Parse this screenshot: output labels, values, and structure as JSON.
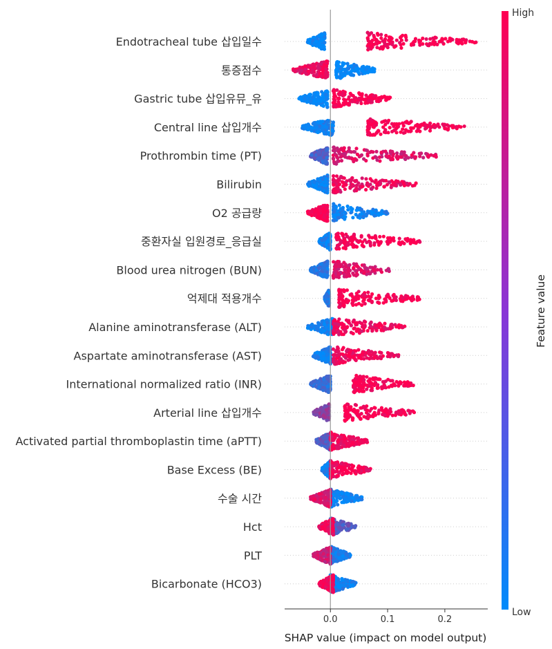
{
  "chart_data": {
    "type": "scatter",
    "subtype": "shap-beeswarm",
    "xlabel": "SHAP value (impact on model output)",
    "xlim": [
      -0.08,
      0.275
    ],
    "xticks": [
      0.0,
      0.1,
      0.2
    ],
    "xtick_labels": [
      "0.0",
      "0.1",
      "0.2"
    ],
    "colorbar": {
      "label": "Feature value",
      "high_label": "High",
      "low_label": "Low",
      "high_color": "#ff0052",
      "low_color": "#008bfb"
    },
    "features": [
      {
        "name": "Endotracheal tube 삽입일수",
        "low_range": [
          -0.04,
          -0.01
        ],
        "high_range": [
          0.065,
          0.255
        ],
        "low_color": 0.0,
        "high_color": 1.0
      },
      {
        "name": "통증점수",
        "low_range": [
          0.01,
          0.08
        ],
        "high_range": [
          -0.065,
          -0.005
        ],
        "low_color": 0.0,
        "high_color": 0.92
      },
      {
        "name": "Gastric tube 삽입유뮤_유",
        "low_range": [
          -0.055,
          -0.005
        ],
        "high_range": [
          0.005,
          0.105
        ],
        "low_color": 0.0,
        "high_color": 1.0
      },
      {
        "name": "Central line 삽입개수",
        "low_range": [
          -0.05,
          0.005
        ],
        "high_range": [
          0.065,
          0.235
        ],
        "low_color": 0.05,
        "high_color": 1.0
      },
      {
        "name": "Prothrombin time (PT)",
        "low_range": [
          -0.035,
          -0.005
        ],
        "high_range": [
          0.005,
          0.185
        ],
        "low_color": 0.3,
        "high_color": 0.85
      },
      {
        "name": "Bilirubin",
        "low_range": [
          -0.04,
          -0.005
        ],
        "high_range": [
          0.005,
          0.15
        ],
        "low_color": 0.05,
        "high_color": 0.9
      },
      {
        "name": "O2 공급량",
        "low_range": [
          0.005,
          0.1
        ],
        "high_range": [
          -0.04,
          -0.005
        ],
        "low_color": 0.05,
        "high_color": 1.0
      },
      {
        "name": "중환자실 입원경로_응급실",
        "low_range": [
          -0.02,
          0.0
        ],
        "high_range": [
          0.01,
          0.16
        ],
        "low_color": 0.05,
        "high_color": 1.0
      },
      {
        "name": "Blood urea nitrogen (BUN)",
        "low_range": [
          -0.035,
          -0.005
        ],
        "high_range": [
          0.005,
          0.105
        ],
        "low_color": 0.15,
        "high_color": 0.85
      },
      {
        "name": "억제대 적용개수",
        "low_range": [
          -0.01,
          -0.002
        ],
        "high_range": [
          0.015,
          0.158
        ],
        "low_color": 0.1,
        "high_color": 1.0
      },
      {
        "name": "Alanine aminotransferase (ALT)",
        "low_range": [
          -0.04,
          0.005
        ],
        "high_range": [
          0.005,
          0.13
        ],
        "low_color": 0.05,
        "high_color": 0.95
      },
      {
        "name": "Aspartate aminotransferase (AST)",
        "low_range": [
          -0.03,
          0.0
        ],
        "high_range": [
          0.005,
          0.12
        ],
        "low_color": 0.05,
        "high_color": 0.95
      },
      {
        "name": "International normalized ratio (INR)",
        "low_range": [
          -0.035,
          0.0
        ],
        "high_range": [
          0.04,
          0.145
        ],
        "low_color": 0.2,
        "high_color": 1.0
      },
      {
        "name": "Arterial line 삽입개수",
        "low_range": [
          -0.03,
          -0.002
        ],
        "high_range": [
          0.025,
          0.148
        ],
        "low_color": 0.55,
        "high_color": 1.0
      },
      {
        "name": "Activated partial thromboplastin time (aPTT)",
        "low_range": [
          -0.025,
          0.0
        ],
        "high_range": [
          0.0,
          0.065
        ],
        "low_color": 0.35,
        "high_color": 0.95
      },
      {
        "name": "Base Excess (BE)",
        "low_range": [
          -0.015,
          0.0
        ],
        "high_range": [
          0.0,
          0.07
        ],
        "low_color": 0.05,
        "high_color": 0.95
      },
      {
        "name": "수술 시간",
        "low_range": [
          0.0,
          0.055
        ],
        "high_range": [
          -0.035,
          0.0
        ],
        "low_color": 0.05,
        "high_color": 0.85
      },
      {
        "name": "Hct",
        "low_range": [
          0.0,
          0.045
        ],
        "high_range": [
          -0.02,
          0.005
        ],
        "low_color": 0.35,
        "high_color": 0.95
      },
      {
        "name": "PLT",
        "low_range": [
          0.0,
          0.035
        ],
        "high_range": [
          -0.03,
          0.0
        ],
        "low_color": 0.1,
        "high_color": 0.8
      },
      {
        "name": "Bicarbonate (HCO3)",
        "low_range": [
          0.0,
          0.045
        ],
        "high_range": [
          -0.02,
          0.005
        ],
        "low_color": 0.05,
        "high_color": 0.95
      }
    ]
  }
}
